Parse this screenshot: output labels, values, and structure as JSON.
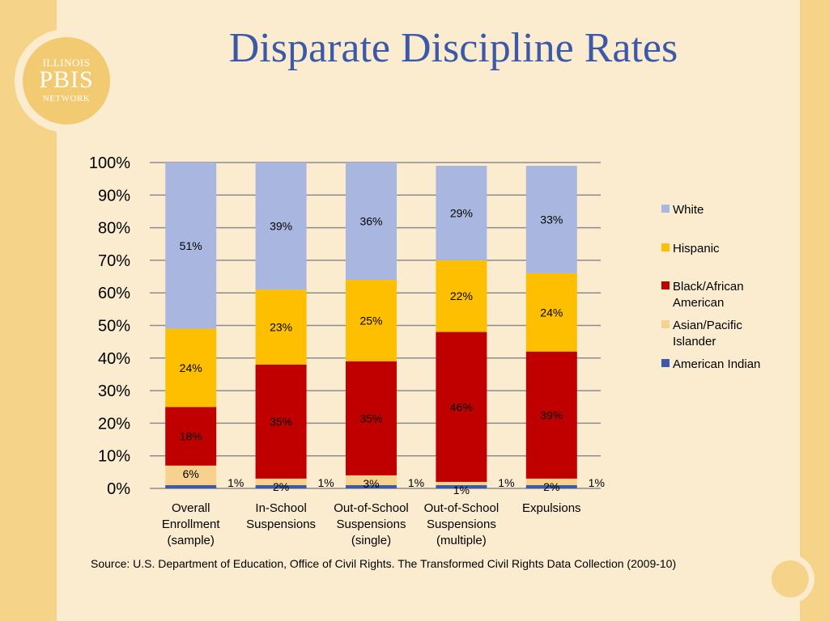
{
  "slide": {
    "title": "Disparate Discipline Rates",
    "logo": {
      "line1": "ILLINOIS",
      "line2": "PBIS",
      "line3": "NETWORK"
    },
    "source": "Source: U.S. Department of Education, Office of Civil Rights. The Transformed Civil Rights Data Collection (2009-10)"
  },
  "chart_data": {
    "type": "bar",
    "stacked": true,
    "categories": [
      [
        "Overall",
        "Enrollment",
        "(sample)"
      ],
      [
        "In-School",
        "Suspensions"
      ],
      [
        "Out-of-School",
        "Suspensions",
        "(single)"
      ],
      [
        "Out-of-School",
        "Suspensions",
        "(multiple)"
      ],
      [
        "Expulsions"
      ]
    ],
    "ylim": [
      0,
      100
    ],
    "yticks": [
      "0%",
      "10%",
      "20%",
      "30%",
      "40%",
      "50%",
      "60%",
      "70%",
      "80%",
      "90%",
      "100%"
    ],
    "legend_position": "right",
    "series": [
      {
        "name": "American Indian",
        "color": "#3b5ba8",
        "values": [
          1,
          1,
          1,
          1,
          1
        ],
        "labels": [
          "1%",
          "1%",
          "1%",
          "1%",
          "1%"
        ]
      },
      {
        "name": "Asian/Pacific Islander",
        "color": "#f7d28f",
        "values": [
          6,
          2,
          3,
          1,
          2
        ],
        "labels": [
          "6%",
          "2%",
          "3%",
          "1%",
          "2%"
        ]
      },
      {
        "name": "Black/African American",
        "color": "#c00000",
        "values": [
          18,
          35,
          35,
          46,
          39
        ],
        "labels": [
          "18%",
          "35%",
          "35%",
          "46%",
          "39%"
        ]
      },
      {
        "name": "Hispanic",
        "color": "#fdbf00",
        "values": [
          24,
          23,
          25,
          22,
          24
        ],
        "labels": [
          "24%",
          "23%",
          "25%",
          "22%",
          "24%"
        ]
      },
      {
        "name": "White",
        "color": "#a9b7e0",
        "values": [
          51,
          39,
          36,
          29,
          33
        ],
        "labels": [
          "51%",
          "39%",
          "36%",
          "29%",
          "33%"
        ]
      }
    ],
    "legend_order": [
      "White",
      "Hispanic",
      "Black/African American",
      "Asian/Pacific Islander",
      "American Indian"
    ],
    "legend_lines": {
      "White": [
        "White"
      ],
      "Hispanic": [
        "Hispanic"
      ],
      "Black/African American": [
        "Black/African",
        "American"
      ],
      "Asian/Pacific Islander": [
        "Asian/Pacific",
        "Islander"
      ],
      "American Indian": [
        "American Indian"
      ]
    }
  }
}
